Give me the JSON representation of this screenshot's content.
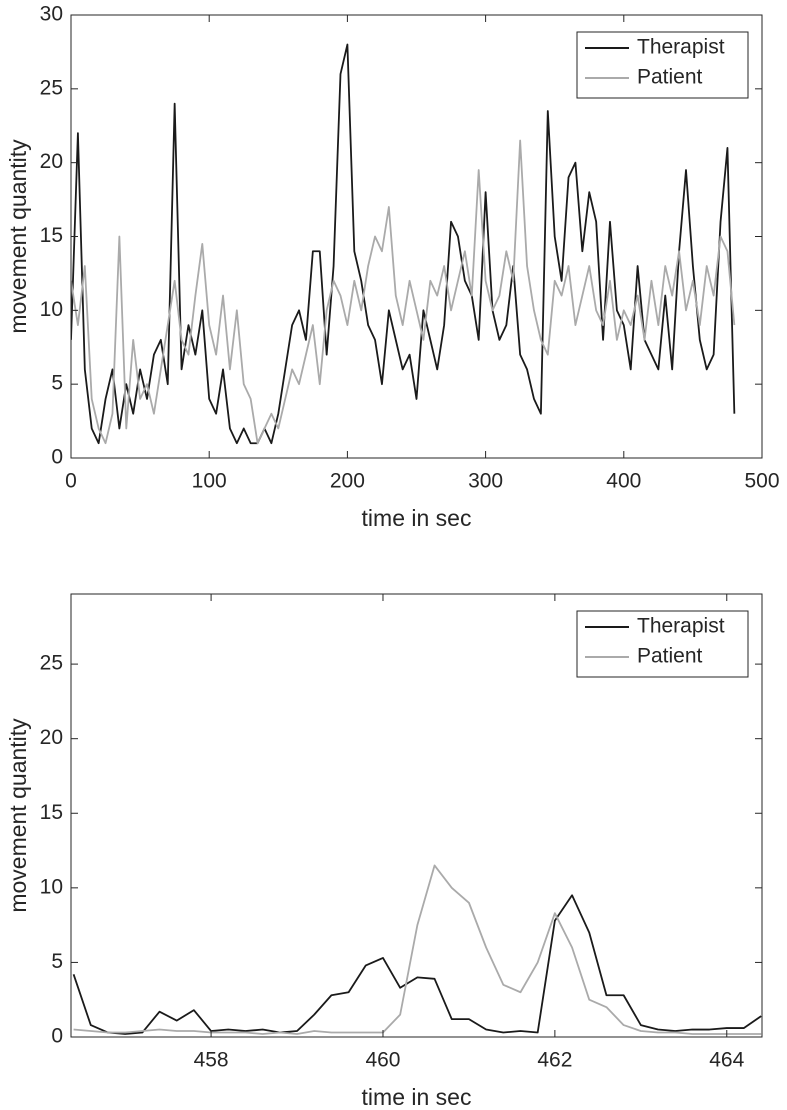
{
  "chart_data": [
    {
      "type": "line",
      "xlabel": "time in sec",
      "ylabel": "movement quantity",
      "x": [
        0,
        5,
        10,
        15,
        20,
        25,
        30,
        35,
        40,
        45,
        50,
        55,
        60,
        65,
        70,
        75,
        80,
        85,
        90,
        95,
        100,
        105,
        110,
        115,
        120,
        125,
        130,
        135,
        140,
        145,
        150,
        155,
        160,
        165,
        170,
        175,
        180,
        185,
        190,
        195,
        200,
        205,
        210,
        215,
        220,
        225,
        230,
        235,
        240,
        245,
        250,
        255,
        260,
        265,
        270,
        275,
        280,
        285,
        290,
        295,
        300,
        305,
        310,
        315,
        320,
        325,
        330,
        335,
        340,
        345,
        350,
        355,
        360,
        365,
        370,
        375,
        380,
        385,
        390,
        395,
        400,
        405,
        410,
        415,
        420,
        425,
        430,
        435,
        440,
        445,
        450,
        455,
        460,
        465,
        470,
        475,
        480
      ],
      "series": [
        {
          "name": "Therapist",
          "color": "#1a1a1a",
          "values": [
            8,
            22,
            6,
            2,
            1,
            4,
            6,
            2,
            5,
            3,
            6,
            4,
            7,
            8,
            5,
            24,
            6,
            9,
            7,
            10,
            4,
            3,
            6,
            2,
            1,
            2,
            1,
            1,
            2,
            1,
            3,
            6,
            9,
            10,
            8,
            14,
            14,
            7,
            13,
            26,
            28,
            14,
            12,
            9,
            8,
            5,
            10,
            8,
            6,
            7,
            4,
            10,
            8,
            6,
            9,
            16,
            15,
            12,
            11,
            8,
            18,
            10,
            8,
            9,
            13,
            7,
            6,
            4,
            3,
            23.5,
            15,
            12,
            19,
            20,
            14,
            18,
            16,
            8,
            16,
            10,
            9,
            6,
            13,
            8,
            7,
            6,
            11,
            6,
            14,
            19.5,
            13,
            8,
            6,
            7,
            16,
            21,
            3
          ]
        },
        {
          "name": "Patient",
          "color": "#aaaaaa",
          "values": [
            12,
            9,
            13,
            4,
            2,
            1,
            3,
            15,
            2,
            8,
            4,
            5,
            3,
            6,
            9,
            12,
            8,
            7,
            11,
            14.5,
            9,
            7,
            11,
            6,
            10,
            5,
            4,
            1,
            2,
            3,
            2,
            4,
            6,
            5,
            7,
            9,
            5,
            10,
            12,
            11,
            9,
            12,
            10,
            13,
            15,
            14,
            17,
            11,
            9,
            12,
            10,
            8,
            12,
            11,
            13,
            10,
            12,
            14,
            11,
            19.5,
            12,
            10,
            11,
            14,
            12,
            21.5,
            13,
            10,
            8,
            7,
            12,
            11,
            13,
            9,
            11,
            13,
            10,
            9,
            12,
            8,
            10,
            9,
            11,
            8,
            12,
            9,
            13,
            11,
            14,
            10,
            12,
            9,
            13,
            11,
            15,
            14,
            9
          ]
        }
      ],
      "xlim": [
        0,
        500
      ],
      "xticks": [
        0,
        100,
        200,
        300,
        400,
        500
      ],
      "ylim": [
        0,
        30
      ],
      "yticks": [
        0,
        5,
        10,
        15,
        20,
        25,
        30
      ],
      "grid": false,
      "legend": "northeast"
    },
    {
      "type": "line",
      "xlabel": "time in sec",
      "ylabel": "movement quantity",
      "x": [
        456.4,
        456.6,
        456.8,
        457.0,
        457.2,
        457.4,
        457.6,
        457.8,
        458.0,
        458.2,
        458.4,
        458.6,
        458.8,
        459.0,
        459.2,
        459.4,
        459.6,
        459.8,
        460.0,
        460.2,
        460.4,
        460.6,
        460.8,
        461.0,
        461.2,
        461.4,
        461.6,
        461.8,
        462.0,
        462.2,
        462.4,
        462.6,
        462.8,
        463.0,
        463.2,
        463.4,
        463.6,
        463.8,
        464.0,
        464.2,
        464.4
      ],
      "series": [
        {
          "name": "Therapist",
          "color": "#1a1a1a",
          "values": [
            4.2,
            0.8,
            0.3,
            0.2,
            0.3,
            1.7,
            1.1,
            1.8,
            0.4,
            0.5,
            0.4,
            0.5,
            0.3,
            0.4,
            1.5,
            2.8,
            3.0,
            4.8,
            5.3,
            3.3,
            4.0,
            3.9,
            1.2,
            1.2,
            0.5,
            0.3,
            0.4,
            0.3,
            7.8,
            9.5,
            7.0,
            2.8,
            2.8,
            0.8,
            0.5,
            0.4,
            0.5,
            0.5,
            0.6,
            0.6,
            1.4
          ]
        },
        {
          "name": "Patient",
          "color": "#aaaaaa",
          "values": [
            0.5,
            0.4,
            0.3,
            0.3,
            0.4,
            0.5,
            0.4,
            0.4,
            0.3,
            0.3,
            0.3,
            0.2,
            0.3,
            0.2,
            0.4,
            0.3,
            0.3,
            0.3,
            0.3,
            1.5,
            7.5,
            11.5,
            10.0,
            9.0,
            6.0,
            3.5,
            3.0,
            5.0,
            8.3,
            6.0,
            2.5,
            2.0,
            0.8,
            0.4,
            0.3,
            0.3,
            0.2,
            0.2,
            0.2,
            0.2,
            0.2
          ]
        }
      ],
      "xlim": [
        456.37,
        464.41
      ],
      "xticks": [
        458,
        460,
        462,
        464
      ],
      "ylim": [
        0,
        29.7
      ],
      "yticks": [
        0,
        5,
        10,
        15,
        20,
        25
      ],
      "grid": false,
      "legend": "northeast"
    }
  ]
}
